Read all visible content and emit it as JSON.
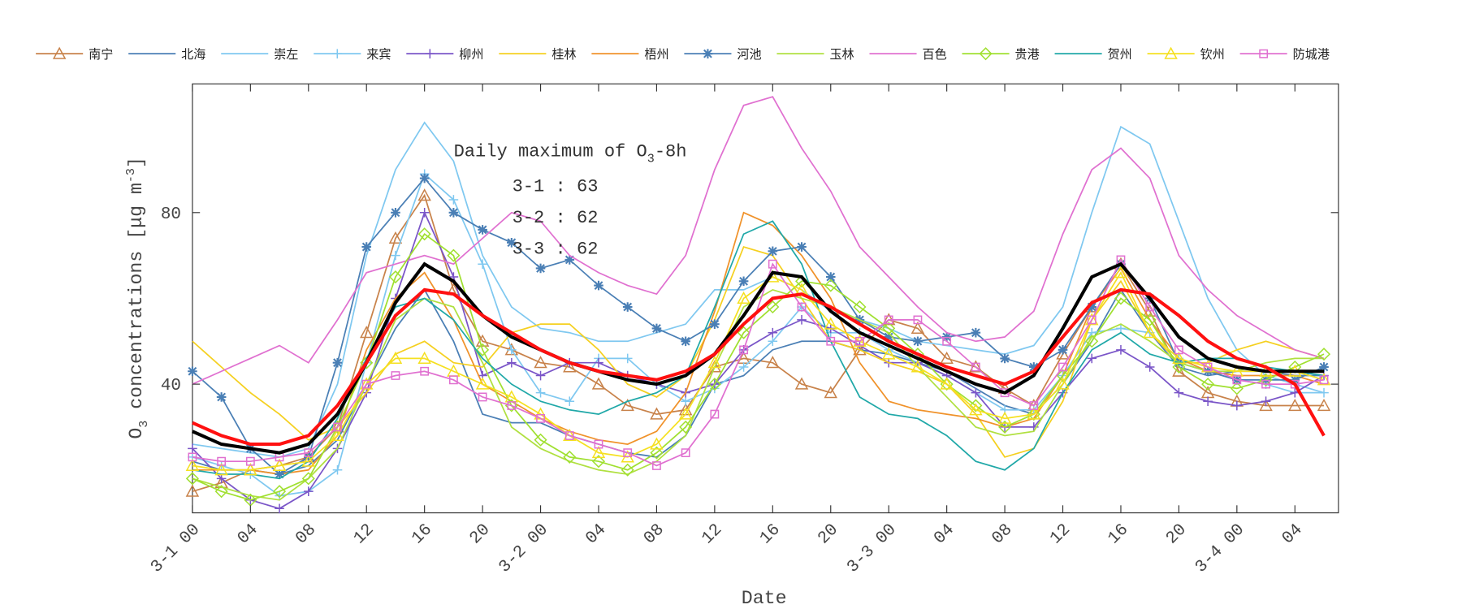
{
  "chart_data": {
    "type": "line",
    "xlabel": "Date",
    "ylabel": [
      "O",
      "3",
      " concentrations [μg m",
      "-3",
      "]"
    ],
    "annotation": {
      "title": [
        "Daily maximum of O",
        "3",
        "-8h"
      ],
      "lines": [
        "3-1 : 63",
        "3-2 : 62",
        "3-3 : 62"
      ]
    },
    "x": [
      0,
      2,
      4,
      6,
      8,
      10,
      12,
      14,
      16,
      18,
      20,
      22,
      24,
      26,
      28,
      30,
      32,
      34,
      36,
      38,
      40,
      42,
      44,
      46,
      48,
      50,
      52,
      54,
      56,
      58,
      60,
      62,
      64,
      66,
      68,
      70,
      72,
      74,
      76,
      78
    ],
    "xlim": [
      0,
      79
    ],
    "xticks": [
      {
        "value": 0,
        "label": "3-1 00"
      },
      {
        "value": 4,
        "label": "04"
      },
      {
        "value": 8,
        "label": "08"
      },
      {
        "value": 12,
        "label": "12"
      },
      {
        "value": 16,
        "label": "16"
      },
      {
        "value": 20,
        "label": "20"
      },
      {
        "value": 24,
        "label": "3-2 00"
      },
      {
        "value": 28,
        "label": "04"
      },
      {
        "value": 32,
        "label": "08"
      },
      {
        "value": 36,
        "label": "12"
      },
      {
        "value": 40,
        "label": "16"
      },
      {
        "value": 44,
        "label": "20"
      },
      {
        "value": 48,
        "label": "3-3 00"
      },
      {
        "value": 52,
        "label": "04"
      },
      {
        "value": 56,
        "label": "08"
      },
      {
        "value": 60,
        "label": "12"
      },
      {
        "value": 64,
        "label": "16"
      },
      {
        "value": 68,
        "label": "20"
      },
      {
        "value": 72,
        "label": "3-4 00"
      },
      {
        "value": 76,
        "label": "04"
      }
    ],
    "ylim": [
      10,
      110
    ],
    "yticks": [
      40,
      80
    ],
    "series": [
      {
        "name": "南宁",
        "color": "#c8824a",
        "marker": "triangle",
        "values": [
          15,
          17,
          20,
          21,
          23,
          30,
          52,
          74,
          84,
          62,
          50,
          48,
          45,
          44,
          40,
          35,
          33,
          34,
          44,
          46,
          45,
          40,
          38,
          48,
          55,
          53,
          46,
          44,
          39,
          35,
          47,
          58,
          68,
          57,
          43,
          38,
          36,
          35,
          35,
          35
        ]
      },
      {
        "name": "北海",
        "color": "#4a7fb5",
        "marker": "none",
        "values": [
          22,
          20,
          20,
          19,
          21,
          27,
          40,
          53,
          62,
          50,
          33,
          31,
          31,
          28,
          26,
          24,
          23,
          28,
          40,
          42,
          48,
          50,
          50,
          48,
          47,
          45,
          43,
          39,
          35,
          33,
          40,
          50,
          62,
          52,
          44,
          42,
          43,
          43,
          42,
          42
        ]
      },
      {
        "name": "崇左",
        "color": "#7fc8f0",
        "marker": "none",
        "values": [
          26,
          25,
          24,
          23,
          25,
          40,
          70,
          90,
          101,
          92,
          70,
          58,
          53,
          52,
          50,
          50,
          52,
          54,
          62,
          62,
          65,
          62,
          57,
          55,
          53,
          50,
          49,
          48,
          47,
          49,
          58,
          80,
          100,
          96,
          78,
          60,
          48,
          42,
          40,
          38
        ]
      },
      {
        "name": "来宾",
        "color": "#7fc8f0",
        "marker": "plus",
        "values": [
          23,
          21,
          19,
          14,
          15,
          20,
          45,
          70,
          89,
          83,
          68,
          48,
          38,
          36,
          46,
          46,
          40,
          36,
          39,
          44,
          50,
          58,
          52,
          52,
          48,
          45,
          42,
          38,
          34,
          34,
          42,
          52,
          53,
          52,
          46,
          43,
          41,
          40,
          38,
          38
        ]
      },
      {
        "name": "柳州",
        "color": "#7a55c8",
        "marker": "plus",
        "values": [
          25,
          18,
          13,
          11,
          15,
          25,
          38,
          60,
          80,
          65,
          42,
          45,
          42,
          45,
          45,
          42,
          40,
          38,
          40,
          48,
          52,
          55,
          53,
          49,
          45,
          45,
          42,
          38,
          30,
          30,
          38,
          46,
          48,
          44,
          38,
          36,
          35,
          36,
          38,
          42
        ]
      },
      {
        "name": "桂林",
        "color": "#f5d020",
        "marker": "none",
        "values": [
          50,
          44,
          38,
          33,
          27,
          30,
          38,
          47,
          50,
          45,
          44,
          52,
          54,
          54,
          48,
          40,
          37,
          42,
          55,
          72,
          70,
          60,
          50,
          48,
          45,
          43,
          40,
          33,
          23,
          25,
          36,
          55,
          64,
          52,
          45,
          45,
          48,
          50,
          48,
          46
        ]
      },
      {
        "name": "梧州",
        "color": "#f0922a",
        "marker": "none",
        "values": [
          20,
          20,
          20,
          19,
          20,
          28,
          48,
          60,
          66,
          55,
          40,
          36,
          32,
          29,
          27,
          26,
          29,
          38,
          57,
          80,
          77,
          70,
          60,
          45,
          36,
          34,
          33,
          32,
          30,
          32,
          42,
          58,
          67,
          55,
          46,
          43,
          42,
          42,
          42,
          40
        ]
      },
      {
        "name": "河池",
        "color": "#4a7fb5",
        "marker": "star",
        "values": [
          43,
          37,
          25,
          19,
          23,
          45,
          72,
          80,
          88,
          80,
          76,
          73,
          67,
          69,
          63,
          58,
          53,
          50,
          54,
          64,
          71,
          72,
          65,
          55,
          51,
          50,
          51,
          52,
          46,
          44,
          48,
          58,
          68,
          60,
          45,
          43,
          41,
          41,
          41,
          44
        ]
      },
      {
        "name": "玉林",
        "color": "#b0e040",
        "marker": "none",
        "values": [
          18,
          16,
          14,
          13,
          18,
          25,
          40,
          55,
          60,
          58,
          45,
          30,
          25,
          22,
          20,
          19,
          22,
          28,
          44,
          58,
          62,
          60,
          58,
          55,
          52,
          44,
          37,
          30,
          28,
          29,
          40,
          51,
          54,
          50,
          45,
          43,
          43,
          45,
          46,
          46
        ]
      },
      {
        "name": "百色",
        "color": "#e070d0",
        "marker": "none",
        "values": [
          40,
          43,
          46,
          49,
          45,
          55,
          66,
          68,
          70,
          68,
          74,
          80,
          78,
          70,
          66,
          63,
          61,
          70,
          90,
          105,
          107,
          95,
          85,
          72,
          65,
          58,
          52,
          50,
          51,
          57,
          75,
          90,
          95,
          88,
          70,
          62,
          56,
          52,
          48,
          46
        ]
      },
      {
        "name": "贵港",
        "color": "#a0e030",
        "marker": "diamond",
        "values": [
          18,
          15,
          13,
          15,
          18,
          30,
          45,
          65,
          75,
          70,
          48,
          35,
          27,
          23,
          22,
          20,
          24,
          30,
          40,
          52,
          58,
          64,
          63,
          58,
          53,
          47,
          40,
          35,
          30,
          33,
          42,
          50,
          60,
          55,
          44,
          40,
          39,
          41,
          44,
          47
        ]
      },
      {
        "name": "贺州",
        "color": "#20a8a8",
        "marker": "none",
        "values": [
          20,
          19,
          19,
          18,
          22,
          32,
          46,
          58,
          60,
          55,
          46,
          40,
          36,
          34,
          33,
          36,
          38,
          42,
          58,
          75,
          78,
          68,
          50,
          37,
          33,
          32,
          28,
          22,
          20,
          25,
          38,
          48,
          52,
          47,
          45,
          46,
          46,
          44,
          43,
          42
        ]
      },
      {
        "name": "钦州",
        "color": "#f5e020",
        "marker": "triangle",
        "values": [
          21,
          20,
          20,
          21,
          22,
          28,
          40,
          46,
          46,
          43,
          40,
          37,
          33,
          28,
          24,
          23,
          26,
          33,
          45,
          60,
          65,
          62,
          54,
          50,
          47,
          44,
          40,
          34,
          32,
          33,
          40,
          55,
          66,
          52,
          46,
          44,
          43,
          43,
          43,
          41
        ]
      },
      {
        "name": "防城港",
        "color": "#e070d0",
        "marker": "square",
        "values": [
          23,
          22,
          22,
          23,
          24,
          30,
          40,
          42,
          43,
          41,
          37,
          35,
          32,
          28,
          26,
          24,
          21,
          24,
          33,
          48,
          68,
          58,
          50,
          50,
          55,
          55,
          50,
          44,
          38,
          35,
          44,
          55,
          69,
          58,
          48,
          44,
          41,
          40,
          40,
          41
        ]
      },
      {
        "color": "#000000",
        "marker": "none",
        "values": [
          29,
          26,
          25,
          24,
          26,
          33,
          45,
          59,
          68,
          64,
          56,
          51,
          48,
          45,
          43,
          41,
          40,
          42,
          47,
          56,
          66,
          65,
          57,
          52,
          49,
          46,
          43,
          40,
          38,
          42,
          53,
          65,
          68,
          60,
          51,
          46,
          44,
          43,
          43,
          43
        ]
      },
      {
        "color": "#ff1010",
        "marker": "none",
        "values": [
          31,
          28,
          26,
          26,
          28,
          35,
          45,
          56,
          62,
          61,
          56,
          52,
          48,
          45,
          43,
          42,
          41,
          43,
          47,
          54,
          60,
          61,
          58,
          54,
          50,
          47,
          44,
          42,
          40,
          43,
          51,
          59,
          62,
          61,
          56,
          50,
          46,
          44,
          40,
          28
        ]
      }
    ]
  }
}
